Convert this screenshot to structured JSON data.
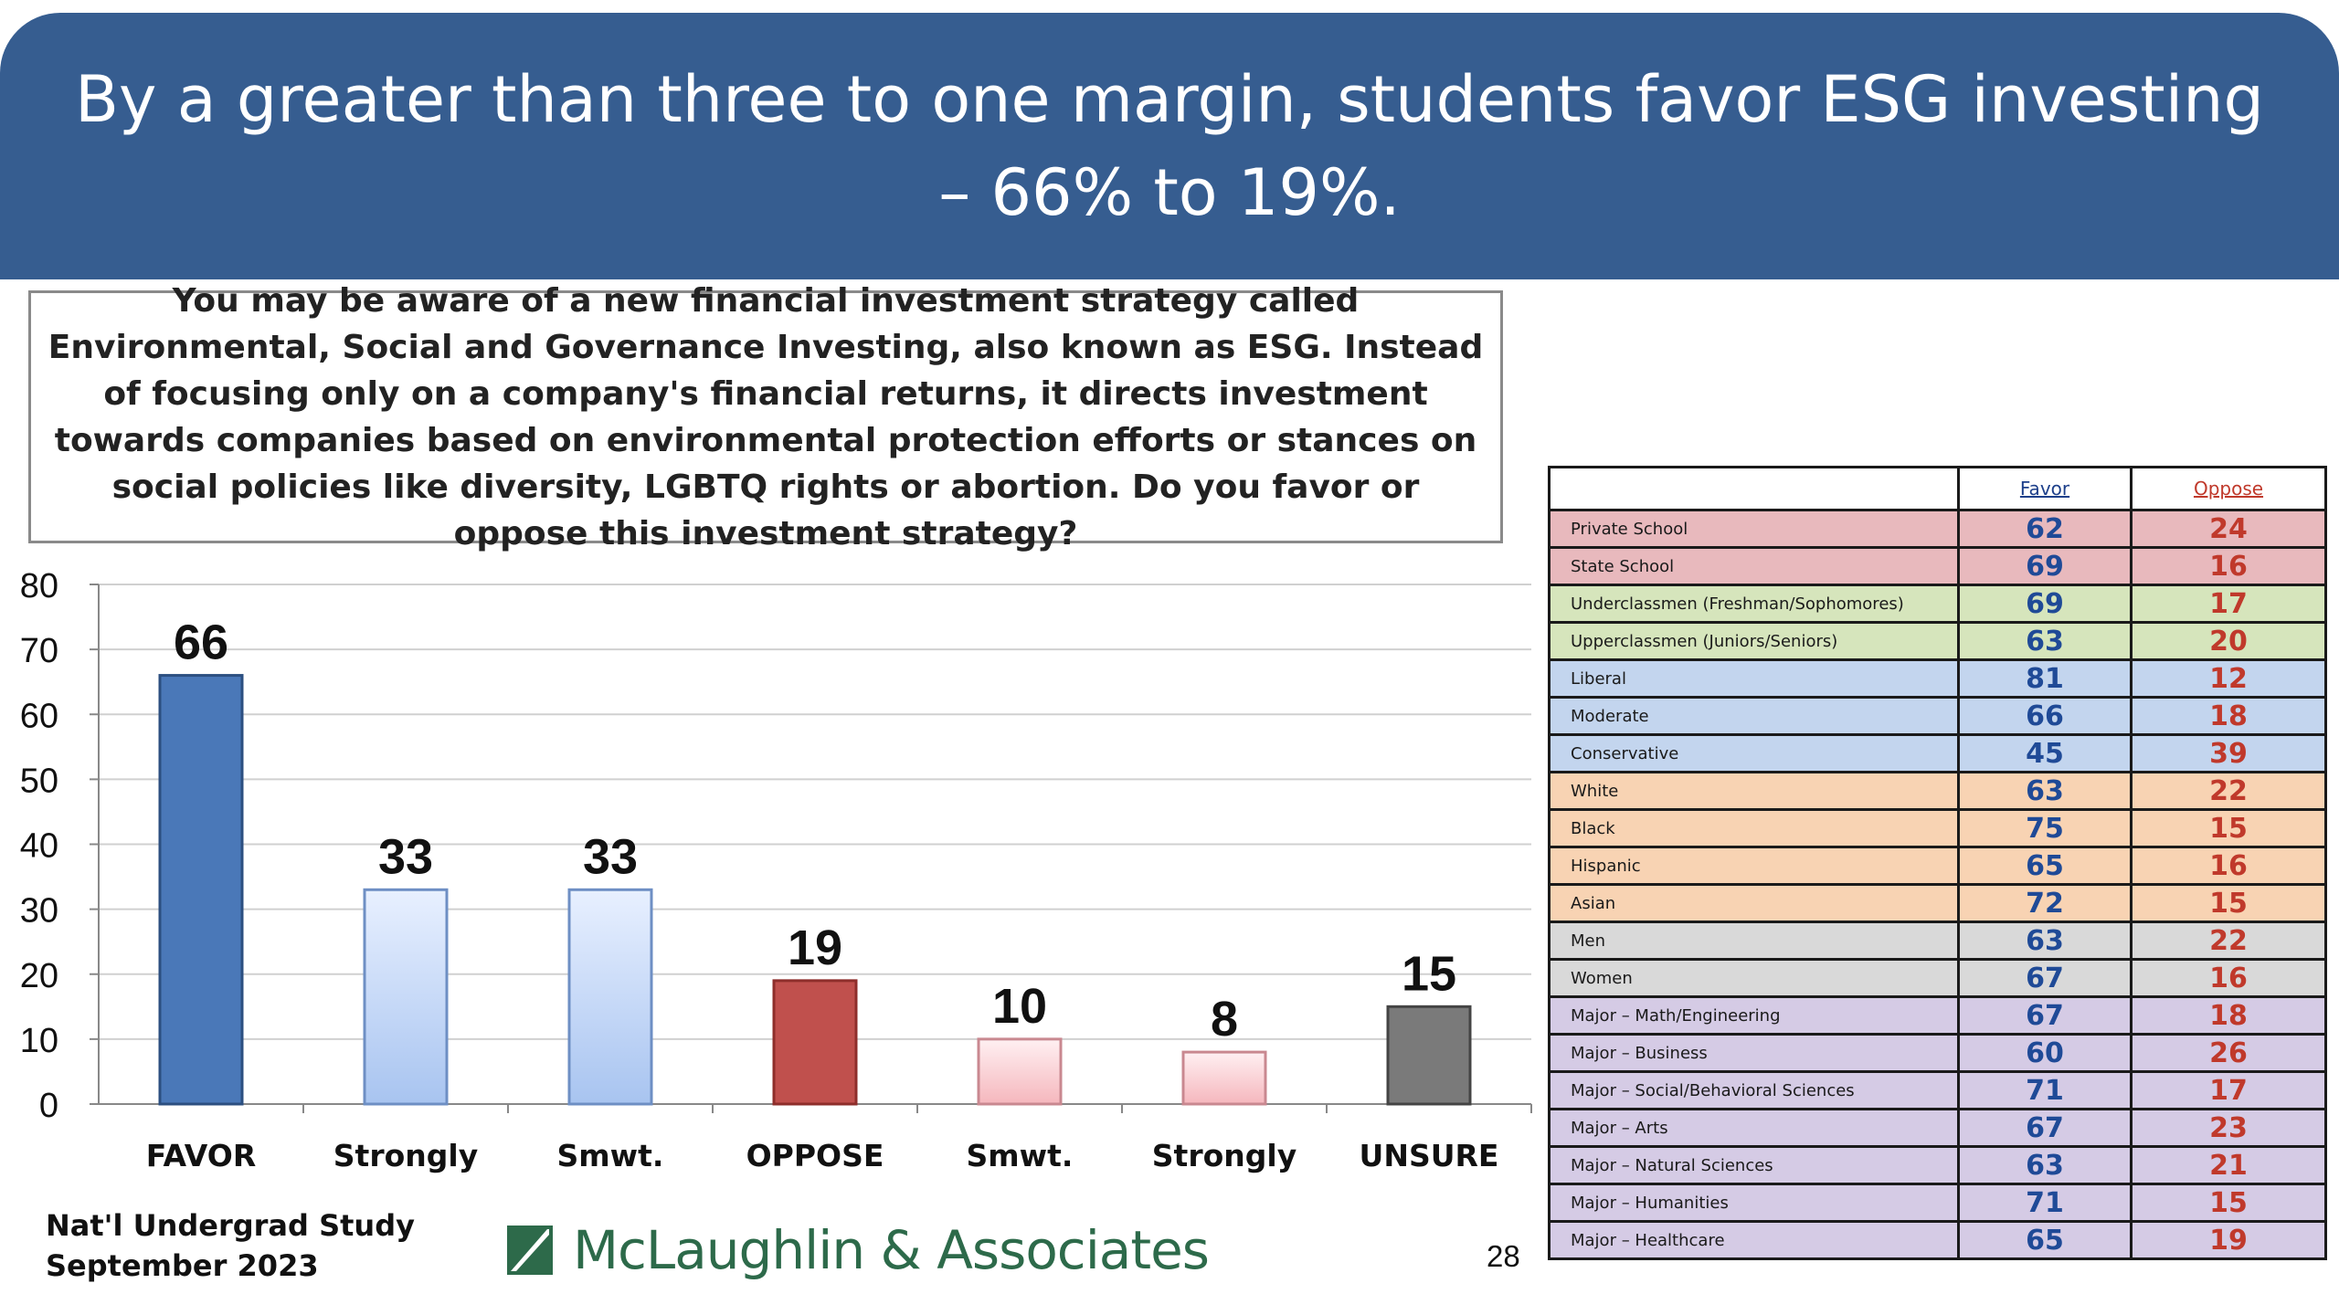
{
  "title": "By a greater than three to one margin, students favor ESG investing – 66% to 19%.",
  "question": "You may be aware of a new financial investment strategy called Environmental, Social and Governance Investing, also known as ESG. Instead of focusing only on a company's financial returns, it directs investment towards companies based on environmental protection efforts or stances on social policies like diversity, LGBTQ rights or abortion. Do you favor or oppose this investment strategy?",
  "footer": {
    "study_line1": "Nat'l Undergrad Study",
    "study_line2": "September 2023",
    "logo_text": "McLaughlin & Associates",
    "page_number": "28"
  },
  "chart_data": {
    "type": "bar",
    "categories": [
      "FAVOR",
      "Strongly",
      "Smwt.",
      "OPPOSE",
      "Smwt.",
      "Strongly",
      "UNSURE"
    ],
    "values": [
      66,
      33,
      33,
      19,
      10,
      8,
      15
    ],
    "ylim": [
      0,
      80
    ],
    "yticks": [
      0,
      10,
      20,
      30,
      40,
      50,
      60,
      70,
      80
    ],
    "grid": true,
    "bar_styles": [
      "solid-blue",
      "gradient-blue",
      "gradient-blue",
      "solid-red",
      "gradient-red",
      "gradient-red",
      "solid-gray"
    ],
    "colors": {
      "favor": "#4a78b8",
      "light_blue": "#a8c4f0",
      "oppose": "#c0504d",
      "light_red": "#f5b7bd",
      "unsure": "#7a7a7a"
    }
  },
  "table": {
    "header_favor": "Favor",
    "header_oppose": "Oppose",
    "rows": [
      {
        "label": "Private School",
        "favor": "62",
        "oppose": "24",
        "bg": "#e8b9bd"
      },
      {
        "label": "State School",
        "favor": "69",
        "oppose": "16",
        "bg": "#e8b9bd"
      },
      {
        "label": "Underclassmen (Freshman/Sophomores)",
        "favor": "69",
        "oppose": "17",
        "bg": "#d6e5bc"
      },
      {
        "label": "Upperclassmen (Juniors/Seniors)",
        "favor": "63",
        "oppose": "20",
        "bg": "#d6e5bc"
      },
      {
        "label": "Liberal",
        "favor": "81",
        "oppose": "12",
        "bg": "#c3d5ee"
      },
      {
        "label": "Moderate",
        "favor": "66",
        "oppose": "18",
        "bg": "#c3d5ee"
      },
      {
        "label": "Conservative",
        "favor": "45",
        "oppose": "39",
        "bg": "#c3d5ee"
      },
      {
        "label": "White",
        "favor": "63",
        "oppose": "22",
        "bg": "#f8d3b3"
      },
      {
        "label": "Black",
        "favor": "75",
        "oppose": "15",
        "bg": "#f8d3b3"
      },
      {
        "label": "Hispanic",
        "favor": "65",
        "oppose": "16",
        "bg": "#f8d3b3"
      },
      {
        "label": "Asian",
        "favor": "72",
        "oppose": "15",
        "bg": "#f8d3b3"
      },
      {
        "label": "Men",
        "favor": "63",
        "oppose": "22",
        "bg": "#d9d9d9"
      },
      {
        "label": "Women",
        "favor": "67",
        "oppose": "16",
        "bg": "#d9d9d9"
      },
      {
        "label": "Major – Math/Engineering",
        "favor": "67",
        "oppose": "18",
        "bg": "#d5cbe5"
      },
      {
        "label": "Major – Business",
        "favor": "60",
        "oppose": "26",
        "bg": "#d5cbe5"
      },
      {
        "label": "Major – Social/Behavioral Sciences",
        "favor": "71",
        "oppose": "17",
        "bg": "#d5cbe5"
      },
      {
        "label": "Major – Arts",
        "favor": "67",
        "oppose": "23",
        "bg": "#d5cbe5"
      },
      {
        "label": "Major – Natural Sciences",
        "favor": "63",
        "oppose": "21",
        "bg": "#d5cbe5"
      },
      {
        "label": "Major – Humanities",
        "favor": "71",
        "oppose": "15",
        "bg": "#d5cbe5"
      },
      {
        "label": "Major – Healthcare",
        "favor": "65",
        "oppose": "19",
        "bg": "#d5cbe5"
      }
    ]
  }
}
